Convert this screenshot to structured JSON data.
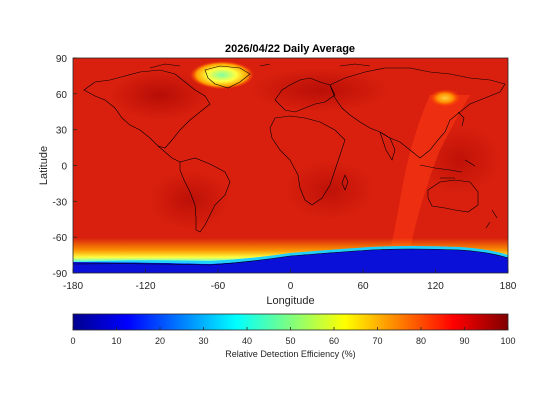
{
  "map": {
    "title": "2026/04/22 Daily Average",
    "xlabel": "Longitude",
    "ylabel": "Latitude",
    "lon_ticks": [
      "-180",
      "-120",
      "-60",
      "0",
      "60",
      "120",
      "180"
    ],
    "lat_ticks": [
      "90",
      "60",
      "30",
      "0",
      "-30",
      "-60",
      "-90"
    ],
    "lon_range": [
      -180,
      180
    ],
    "lat_range": [
      -90,
      90
    ],
    "background_value_range": [
      85,
      98
    ],
    "features": [
      {
        "name": "greenland-low-efficiency",
        "lon": -50,
        "lat": 77,
        "value": 50
      },
      {
        "name": "east-asia-orange-spot",
        "lon": 130,
        "lat": 58,
        "value": 70
      },
      {
        "name": "antarctica-low-efficiency",
        "lon_range": [
          -180,
          180
        ],
        "lat_range": [
          -90,
          -65
        ],
        "value_range": [
          0,
          30
        ]
      }
    ]
  },
  "colorbar": {
    "label": "Relative Detection Efficiency (%)",
    "ticks": [
      "0",
      "10",
      "20",
      "30",
      "40",
      "50",
      "60",
      "70",
      "80",
      "90",
      "100"
    ],
    "range": [
      0,
      100
    ],
    "colormap": "jet"
  },
  "colors": {
    "coast": "#000000",
    "axis": "#262626",
    "ocean_red": "#dd1c0e",
    "deep_red": "#b30000"
  }
}
